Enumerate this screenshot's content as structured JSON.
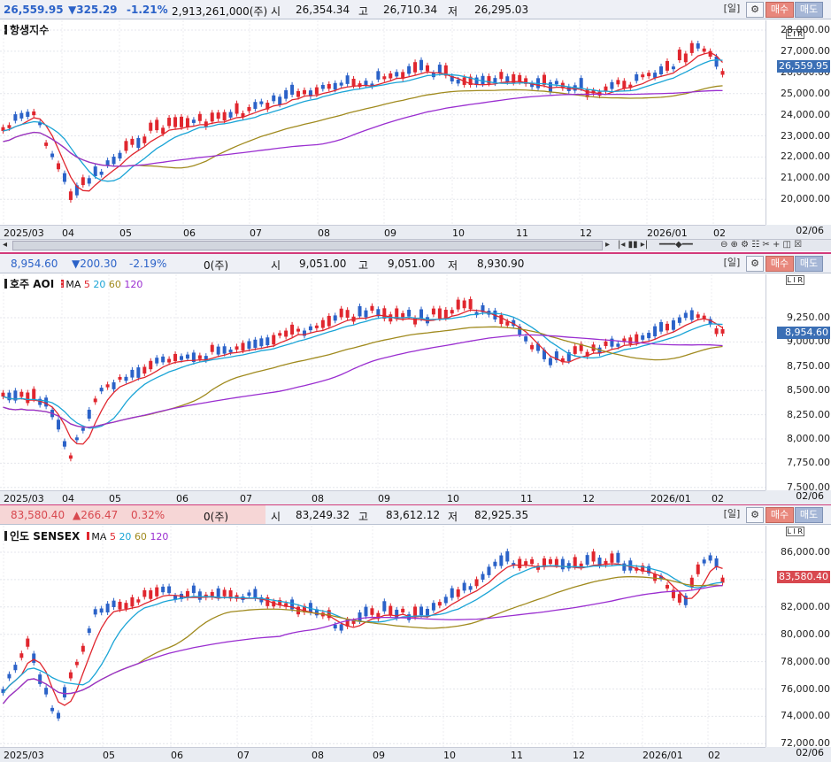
{
  "panels": [
    {
      "header": {
        "price": "26,559.95",
        "change": "▼325.29",
        "pct": "-1.21%",
        "volume": "2,913,261,000(주)",
        "open_label": "시",
        "open": "26,354.34",
        "high_label": "고",
        "high": "26,710.34",
        "low_label": "저",
        "low": "26,295.03"
      },
      "symbol": "항생지수",
      "ma": "",
      "ma_periods": [],
      "current_tag": "26,559.95",
      "price_labels": [
        "28,000.00",
        "27,000.00",
        "26,000.00",
        "25,000.00",
        "24,000.00",
        "23,000.00",
        "22,000.00",
        "21,000.00",
        "20,000.00"
      ],
      "x_labels": [
        "2025/03",
        "04",
        "05",
        "06",
        "07",
        "08",
        "09",
        "10",
        "11",
        "12",
        "2026/01",
        "02"
      ],
      "x_right": "02/06"
    },
    {
      "header": {
        "price": "8,954.60",
        "change": "▼200.30",
        "pct": "-2.19%",
        "volume": "0(주)",
        "open_label": "시",
        "open": "9,051.00",
        "high_label": "고",
        "high": "9,051.00",
        "low_label": "저",
        "low": "8,930.90"
      },
      "symbol": "호주 AOI",
      "ma": "MA",
      "ma_periods": [
        "5",
        "20",
        "60",
        "120"
      ],
      "current_tag": "8,954.60",
      "price_labels": [
        "9,250.00",
        "9,000.00",
        "8,750.00",
        "8,500.00",
        "8,250.00",
        "8,000.00",
        "7,750.00",
        "7,500.00"
      ],
      "x_labels": [
        "2025/03",
        "04",
        "05",
        "06",
        "07",
        "08",
        "09",
        "10",
        "11",
        "12",
        "2026/01",
        "02"
      ],
      "x_right": "02/06"
    },
    {
      "header": {
        "price": "83,580.40",
        "change": "▲266.47",
        "pct": "0.32%",
        "volume": "0(주)",
        "open_label": "시",
        "open": "83,249.32",
        "high_label": "고",
        "high": "83,612.12",
        "low_label": "저",
        "low": "82,925.35"
      },
      "symbol": "인도 SENSEX",
      "ma": "MA",
      "ma_periods": [
        "5",
        "20",
        "60",
        "120"
      ],
      "current_tag": "83,580.40",
      "price_labels": [
        "86,000.00",
        "84,000.00",
        "82,000.00",
        "80,000.00",
        "78,000.00",
        "76,000.00",
        "74,000.00",
        "72,000.00"
      ],
      "x_labels": [
        "2025/03",
        "05",
        "06",
        "07",
        "08",
        "09",
        "10",
        "11",
        "12",
        "2026/01",
        "02"
      ],
      "x_right": "02/06"
    }
  ],
  "controls": {
    "period": "[일]",
    "buy": "매수",
    "sell": "매도",
    "scale_mode": "L I R"
  },
  "colors": {
    "up": "#e0262e",
    "down": "#2b62c8",
    "ma5": "#e0262e",
    "ma20": "#1aa4d6",
    "ma60": "#a08a1e",
    "ma120": "#9a2ed0"
  }
}
